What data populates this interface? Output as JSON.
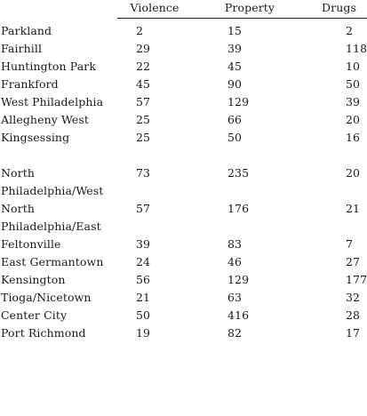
{
  "table": {
    "headers": {
      "location": "",
      "violence": "Violence",
      "property": "Property",
      "drugs": "Drugs"
    },
    "rows": [
      {
        "location": "Parkland",
        "violence": "2",
        "property": "15",
        "drugs": "2"
      },
      {
        "location": "Fairhill",
        "violence": "29",
        "property": "39",
        "drugs": "118"
      },
      {
        "location": "Huntington Park",
        "violence": "22",
        "property": "45",
        "drugs": "10"
      },
      {
        "location": "Frankford",
        "violence": "45",
        "property": "90",
        "drugs": "50"
      },
      {
        "location": "West Philadelphia",
        "violence": "57",
        "property": "129",
        "drugs": "39"
      },
      {
        "location": "Allegheny West",
        "violence": "25",
        "property": "66",
        "drugs": "20"
      },
      {
        "location": "Kingsessing",
        "violence": "25",
        "property": "50",
        "drugs": "16"
      },
      {
        "location": "North Philadelphia/West",
        "violence": "73",
        "property": "235",
        "drugs": "20"
      },
      {
        "location": "North Philadelphia/East",
        "violence": "57",
        "property": "176",
        "drugs": "21"
      },
      {
        "location": "Feltonville",
        "violence": "39",
        "property": "83",
        "drugs": "7"
      },
      {
        "location": "East Germantown",
        "violence": "24",
        "property": "46",
        "drugs": "27"
      },
      {
        "location": "Kensington",
        "violence": "56",
        "property": "129",
        "drugs": "177"
      },
      {
        "location": "Tioga/Nicetown",
        "violence": "21",
        "property": "63",
        "drugs": "32"
      },
      {
        "location": "Center City",
        "violence": "50",
        "property": "416",
        "drugs": "28"
      },
      {
        "location": "Port Richmond",
        "violence": "19",
        "property": "82",
        "drugs": "17"
      }
    ]
  }
}
